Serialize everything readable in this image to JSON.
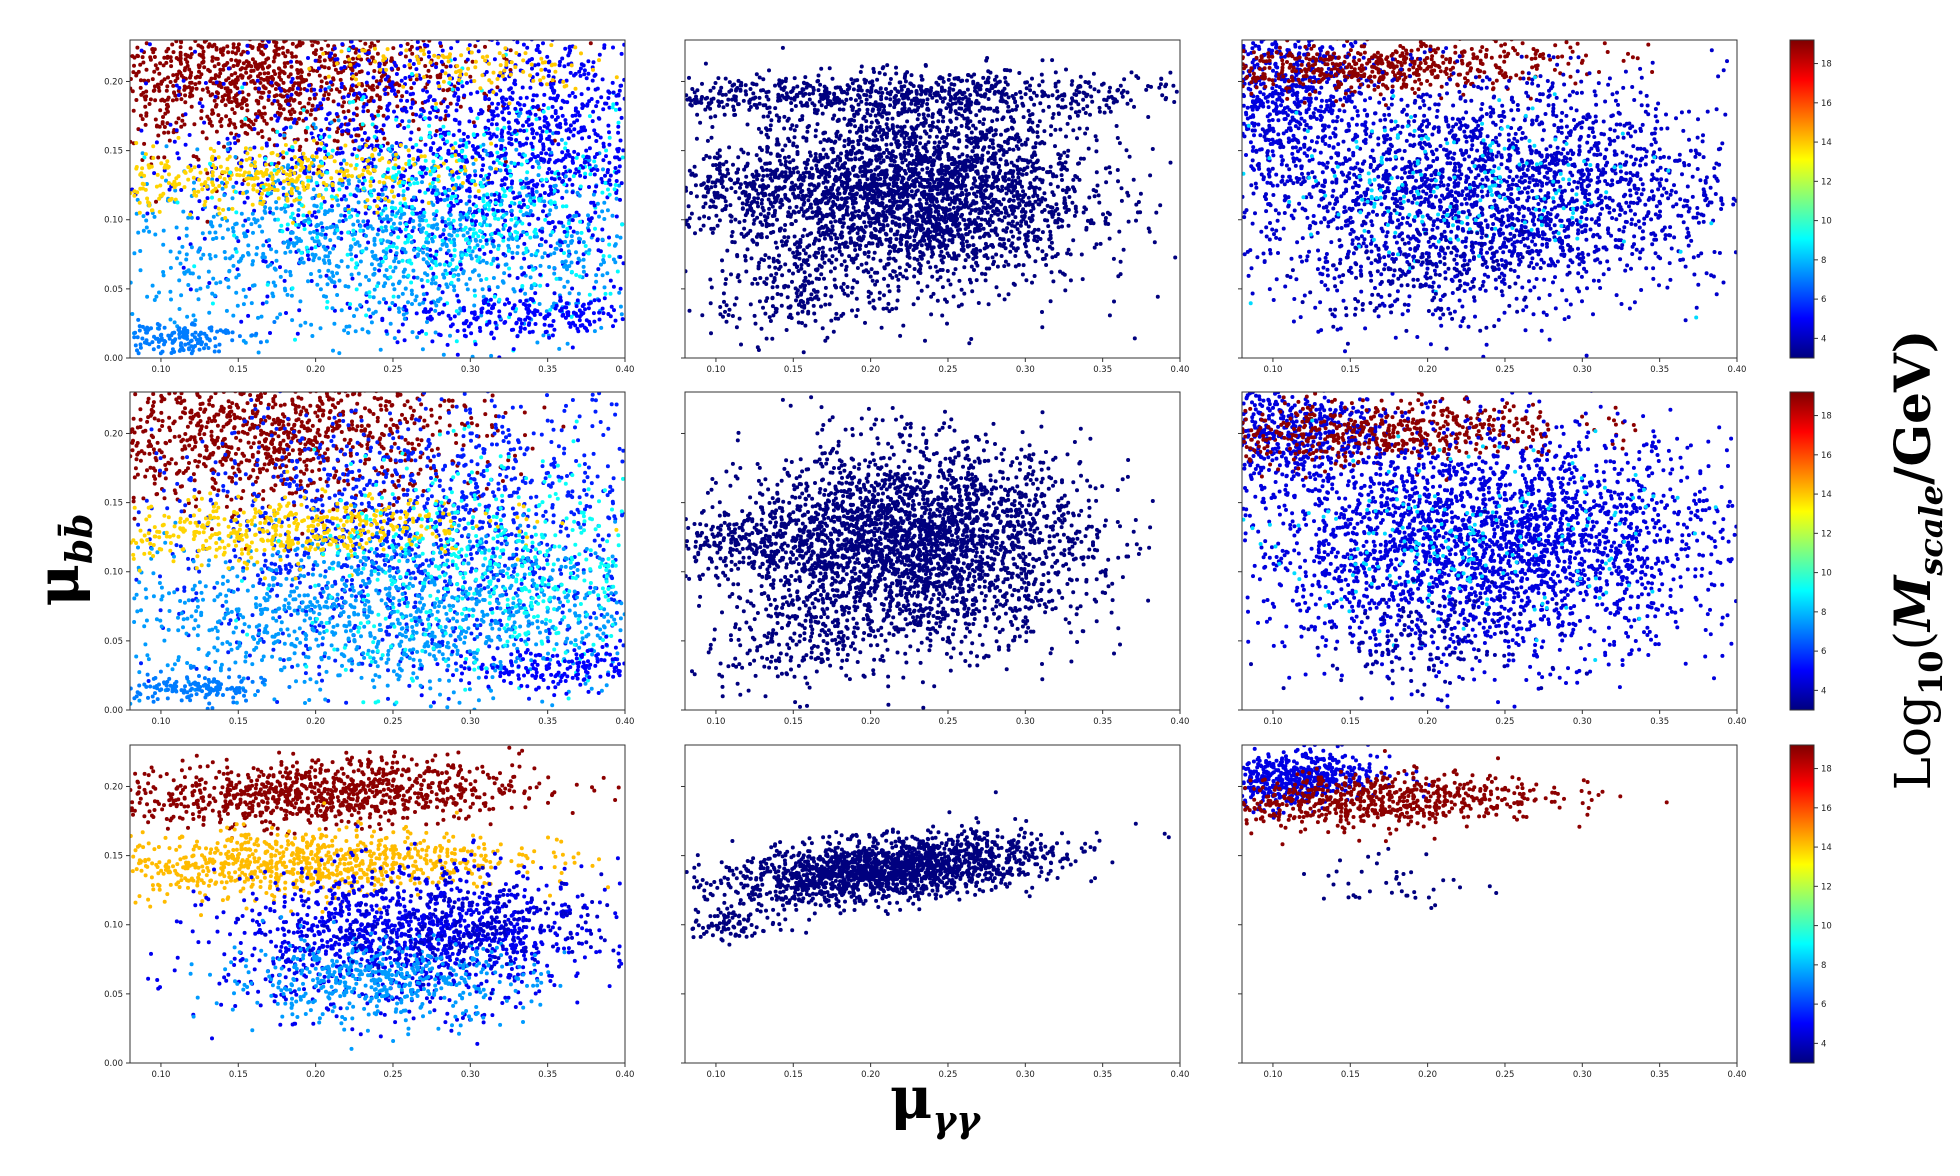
{
  "chart_data": {
    "type": "scatter",
    "layout": "3x3 grid of scatter panels, one colorbar per row",
    "x_axis_symbol": "μ",
    "x_axis_subscript": "γγ",
    "y_axis_symbol": "μ",
    "y_axis_subscript": "bb̄",
    "colorbar": {
      "prefix": "Log",
      "sub": "10",
      "open": "(",
      "symbol": "M",
      "symbol_sub": "scale",
      "unit": "/GeV)",
      "range": [
        3,
        19.2
      ],
      "ticks": [
        4,
        6,
        8,
        10,
        12,
        14,
        16,
        18
      ],
      "colormap": [
        "#00007f",
        "#0000ff",
        "#007fff",
        "#00ffff",
        "#7fff7f",
        "#ffff00",
        "#ff7f00",
        "#ff0000",
        "#7f0000"
      ]
    },
    "xlim": [
      0.08,
      0.4
    ],
    "ylim": [
      0.0,
      0.23
    ],
    "xticks": [
      "0.10",
      "0.15",
      "0.20",
      "0.25",
      "0.30",
      "0.35",
      "0.40"
    ],
    "yticks": [
      "0.00",
      "0.05",
      "0.10",
      "0.15",
      "0.20"
    ],
    "panels": [
      {
        "row": 0,
        "col": 0,
        "clusters": [
          {
            "cx": 0.16,
            "cy": 0.2,
            "sx": 0.07,
            "sy": 0.025,
            "rot": 0.1,
            "n": 1200,
            "c": 19.0
          },
          {
            "cx": 0.28,
            "cy": 0.15,
            "sx": 0.09,
            "sy": 0.05,
            "rot": 0.2,
            "n": 1400,
            "c": 5.0
          },
          {
            "cx": 0.25,
            "cy": 0.08,
            "sx": 0.1,
            "sy": 0.035,
            "rot": 0.0,
            "n": 1200,
            "c": 7.5
          },
          {
            "cx": 0.16,
            "cy": 0.13,
            "sx": 0.07,
            "sy": 0.012,
            "rot": 0.35,
            "n": 400,
            "c": 13.8
          },
          {
            "cx": 0.3,
            "cy": 0.11,
            "sx": 0.07,
            "sy": 0.04,
            "rot": 0.0,
            "n": 500,
            "c": 9.0
          },
          {
            "cx": 0.36,
            "cy": 0.16,
            "sx": 0.04,
            "sy": 0.05,
            "rot": 0.0,
            "n": 400,
            "c": 4.8
          },
          {
            "cx": 0.34,
            "cy": 0.03,
            "sx": 0.05,
            "sy": 0.008,
            "rot": 0.2,
            "n": 250,
            "c": 5.0
          },
          {
            "cx": 0.11,
            "cy": 0.015,
            "sx": 0.02,
            "sy": 0.006,
            "rot": 0.2,
            "n": 150,
            "c": 7.0
          },
          {
            "cx": 0.3,
            "cy": 0.21,
            "sx": 0.05,
            "sy": 0.01,
            "rot": -0.2,
            "n": 120,
            "c": 14.0
          }
        ]
      },
      {
        "row": 0,
        "col": 1,
        "clusters": [
          {
            "cx": 0.23,
            "cy": 0.12,
            "sx": 0.055,
            "sy": 0.035,
            "rot": 0.0,
            "n": 3000,
            "c": 3.0
          },
          {
            "cx": 0.22,
            "cy": 0.19,
            "sx": 0.1,
            "sy": 0.008,
            "rot": 0.12,
            "n": 700,
            "c": 3.0
          },
          {
            "cx": 0.12,
            "cy": 0.12,
            "sx": 0.04,
            "sy": 0.015,
            "rot": 0.25,
            "n": 300,
            "c": 3.0
          },
          {
            "cx": 0.15,
            "cy": 0.05,
            "sx": 0.03,
            "sy": 0.02,
            "rot": 0.4,
            "n": 200,
            "c": 3.0
          }
        ]
      },
      {
        "row": 0,
        "col": 2,
        "clusters": [
          {
            "cx": 0.11,
            "cy": 0.19,
            "sx": 0.03,
            "sy": 0.03,
            "rot": 0.3,
            "n": 700,
            "c": 4.5
          },
          {
            "cx": 0.16,
            "cy": 0.21,
            "sx": 0.07,
            "sy": 0.01,
            "rot": 0.3,
            "n": 600,
            "c": 19.0
          },
          {
            "cx": 0.24,
            "cy": 0.12,
            "sx": 0.08,
            "sy": 0.04,
            "rot": 0.1,
            "n": 2500,
            "c": 4.2
          },
          {
            "cx": 0.22,
            "cy": 0.12,
            "sx": 0.06,
            "sy": 0.03,
            "rot": 0.0,
            "n": 200,
            "c": 8.5
          },
          {
            "cx": 0.2,
            "cy": 0.06,
            "sx": 0.04,
            "sy": 0.02,
            "rot": 0.5,
            "n": 200,
            "c": 3.6
          }
        ]
      },
      {
        "row": 1,
        "col": 0,
        "clusters": [
          {
            "cx": 0.17,
            "cy": 0.2,
            "sx": 0.07,
            "sy": 0.025,
            "rot": 0.1,
            "n": 1100,
            "c": 19.0
          },
          {
            "cx": 0.27,
            "cy": 0.13,
            "sx": 0.09,
            "sy": 0.05,
            "rot": 0.1,
            "n": 1500,
            "c": 5.5
          },
          {
            "cx": 0.25,
            "cy": 0.07,
            "sx": 0.1,
            "sy": 0.03,
            "rot": 0.0,
            "n": 1200,
            "c": 7.5
          },
          {
            "cx": 0.17,
            "cy": 0.13,
            "sx": 0.07,
            "sy": 0.012,
            "rot": 0.3,
            "n": 500,
            "c": 13.8
          },
          {
            "cx": 0.32,
            "cy": 0.1,
            "sx": 0.06,
            "sy": 0.04,
            "rot": 0.0,
            "n": 500,
            "c": 9.2
          },
          {
            "cx": 0.36,
            "cy": 0.03,
            "sx": 0.04,
            "sy": 0.008,
            "rot": 0.2,
            "n": 200,
            "c": 5.0
          },
          {
            "cx": 0.12,
            "cy": 0.015,
            "sx": 0.025,
            "sy": 0.006,
            "rot": 0.2,
            "n": 150,
            "c": 7.0
          }
        ]
      },
      {
        "row": 1,
        "col": 1,
        "clusters": [
          {
            "cx": 0.23,
            "cy": 0.12,
            "sx": 0.055,
            "sy": 0.035,
            "rot": 0.0,
            "n": 3000,
            "c": 3.0
          },
          {
            "cx": 0.12,
            "cy": 0.12,
            "sx": 0.04,
            "sy": 0.012,
            "rot": 0.2,
            "n": 300,
            "c": 3.0
          },
          {
            "cx": 0.15,
            "cy": 0.05,
            "sx": 0.03,
            "sy": 0.02,
            "rot": 0.4,
            "n": 200,
            "c": 3.0
          }
        ]
      },
      {
        "row": 1,
        "col": 2,
        "clusters": [
          {
            "cx": 0.11,
            "cy": 0.2,
            "sx": 0.03,
            "sy": 0.02,
            "rot": 0.3,
            "n": 500,
            "c": 4.5
          },
          {
            "cx": 0.16,
            "cy": 0.2,
            "sx": 0.07,
            "sy": 0.012,
            "rot": 0.3,
            "n": 600,
            "c": 19.0
          },
          {
            "cx": 0.24,
            "cy": 0.12,
            "sx": 0.08,
            "sy": 0.04,
            "rot": 0.0,
            "n": 2800,
            "c": 4.5
          },
          {
            "cx": 0.22,
            "cy": 0.12,
            "sx": 0.06,
            "sy": 0.03,
            "rot": 0.0,
            "n": 200,
            "c": 8.5
          },
          {
            "cx": 0.2,
            "cy": 0.05,
            "sx": 0.04,
            "sy": 0.02,
            "rot": 0.4,
            "n": 150,
            "c": 3.6
          }
        ]
      },
      {
        "row": 2,
        "col": 0,
        "clusters": [
          {
            "cx": 0.2,
            "cy": 0.195,
            "sx": 0.07,
            "sy": 0.012,
            "rot": 0.22,
            "n": 1000,
            "c": 19.0
          },
          {
            "cx": 0.19,
            "cy": 0.145,
            "sx": 0.07,
            "sy": 0.012,
            "rot": 0.22,
            "n": 900,
            "c": 14.2
          },
          {
            "cx": 0.26,
            "cy": 0.09,
            "sx": 0.06,
            "sy": 0.025,
            "rot": 0.1,
            "n": 1200,
            "c": 4.8
          },
          {
            "cx": 0.24,
            "cy": 0.06,
            "sx": 0.05,
            "sy": 0.015,
            "rot": 0.0,
            "n": 500,
            "c": 7.5
          },
          {
            "cx": 0.3,
            "cy": 0.1,
            "sx": 0.05,
            "sy": 0.015,
            "rot": 0.2,
            "n": 300,
            "c": 4.2
          }
        ]
      },
      {
        "row": 2,
        "col": 1,
        "clusters": [
          {
            "cx": 0.21,
            "cy": 0.14,
            "sx": 0.06,
            "sy": 0.012,
            "rot": 0.55,
            "n": 1800,
            "c": 3.0
          },
          {
            "cx": 0.11,
            "cy": 0.1,
            "sx": 0.02,
            "sy": 0.006,
            "rot": 0.3,
            "n": 100,
            "c": 3.0
          }
        ]
      },
      {
        "row": 2,
        "col": 2,
        "clusters": [
          {
            "cx": 0.11,
            "cy": 0.205,
            "sx": 0.03,
            "sy": 0.01,
            "rot": 0.3,
            "n": 600,
            "c": 4.6
          },
          {
            "cx": 0.16,
            "cy": 0.19,
            "sx": 0.06,
            "sy": 0.01,
            "rot": 0.25,
            "n": 700,
            "c": 19.0
          },
          {
            "cx": 0.18,
            "cy": 0.13,
            "sx": 0.025,
            "sy": 0.012,
            "rot": 0.0,
            "n": 40,
            "c": 3.0
          }
        ]
      }
    ]
  }
}
